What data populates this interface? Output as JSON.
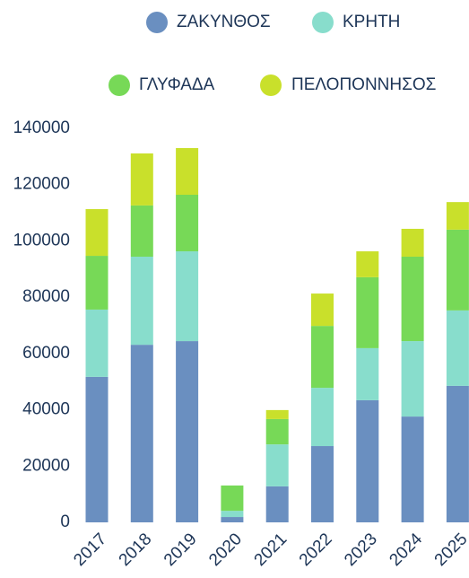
{
  "chart_data": {
    "type": "bar",
    "stacked": true,
    "categories": [
      "2017",
      "2018",
      "2019",
      "2020",
      "2021",
      "2022",
      "2023",
      "2024",
      "2025"
    ],
    "series": [
      {
        "name": "ΖΑΚΥΝΘΟΣ",
        "color": "#6a8fc0",
        "values": [
          51700,
          63100,
          64400,
          1900,
          12800,
          27100,
          43400,
          37600,
          48500
        ]
      },
      {
        "name": "ΚΡΗΤΗ",
        "color": "#88ddcc",
        "values": [
          23900,
          31300,
          31900,
          2200,
          14900,
          20700,
          18500,
          26800,
          26800
        ]
      },
      {
        "name": "ΓΛΥΦΑΔΑ",
        "color": "#77d957",
        "values": [
          19100,
          18200,
          20100,
          9000,
          9000,
          22000,
          25200,
          30000,
          28700
        ]
      },
      {
        "name": "ΠΕΛΟΠΟΝΝΗΣΟΣ",
        "color": "#c9e02b",
        "values": [
          16600,
          18500,
          16600,
          0,
          3200,
          11500,
          9200,
          9900,
          9800
        ]
      }
    ],
    "ylim": [
      0,
      140000
    ],
    "yticks": [
      0,
      20000,
      40000,
      60000,
      80000,
      100000,
      120000,
      140000
    ]
  }
}
